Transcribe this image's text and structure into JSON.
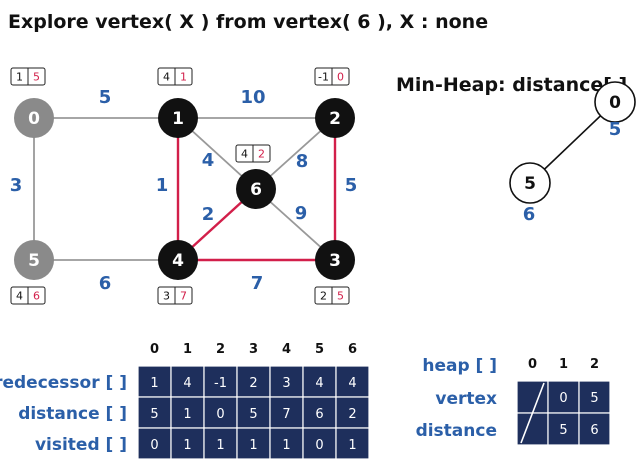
{
  "title": "Explore vertex( X ) from vertex( 6 ), X : none",
  "heap_title": "Min-Heap: distance[ ]",
  "colors": {
    "visited_node": "#111111",
    "unvisited_node": "#8a8a8a",
    "gray_edge": "#999999",
    "tree_edge": "#d21f4a",
    "weight_text": "#2b5fa8",
    "table_fill": "#1e2f5c",
    "distance_text": "#d21f4a"
  },
  "graph": {
    "nodes": [
      {
        "id": "0",
        "state": "unvisited",
        "pred": "1",
        "dist": "5"
      },
      {
        "id": "1",
        "state": "visited",
        "pred": "4",
        "dist": "1"
      },
      {
        "id": "2",
        "state": "visited",
        "pred": "-1",
        "dist": "0"
      },
      {
        "id": "3",
        "state": "visited",
        "pred": "2",
        "dist": "5"
      },
      {
        "id": "4",
        "state": "visited",
        "pred": "3",
        "dist": "7"
      },
      {
        "id": "5",
        "state": "unvisited",
        "pred": "4",
        "dist": "6"
      },
      {
        "id": "6",
        "state": "visited",
        "pred": "4",
        "dist": "2"
      }
    ],
    "edges": [
      {
        "from": "0",
        "to": "1",
        "weight": "5",
        "tree": false
      },
      {
        "from": "1",
        "to": "2",
        "weight": "10",
        "tree": false
      },
      {
        "from": "0",
        "to": "5",
        "weight": "3",
        "tree": false
      },
      {
        "from": "5",
        "to": "4",
        "weight": "6",
        "tree": false
      },
      {
        "from": "1",
        "to": "4",
        "weight": "1",
        "tree": true
      },
      {
        "from": "1",
        "to": "6",
        "weight": "4",
        "tree": false
      },
      {
        "from": "2",
        "to": "6",
        "weight": "8",
        "tree": false
      },
      {
        "from": "2",
        "to": "3",
        "weight": "5",
        "tree": true
      },
      {
        "from": "6",
        "to": "4",
        "weight": "2",
        "tree": true
      },
      {
        "from": "6",
        "to": "3",
        "weight": "9",
        "tree": false
      },
      {
        "from": "4",
        "to": "3",
        "weight": "7",
        "tree": true
      }
    ]
  },
  "heap_tree": {
    "nodes": [
      {
        "vertex": "0",
        "distance": "5"
      },
      {
        "vertex": "5",
        "distance": "6"
      }
    ],
    "edges": [
      {
        "parent": 0,
        "child": 1
      }
    ]
  },
  "table": {
    "columns": [
      "0",
      "1",
      "2",
      "3",
      "4",
      "5",
      "6"
    ],
    "rows": [
      {
        "label": "predecessor [ ]",
        "values": [
          "1",
          "4",
          "-1",
          "2",
          "3",
          "4",
          "4"
        ]
      },
      {
        "label": "distance [ ]",
        "values": [
          "5",
          "1",
          "0",
          "5",
          "7",
          "6",
          "2"
        ]
      },
      {
        "label": "visited [ ]",
        "values": [
          "0",
          "1",
          "1",
          "1",
          "1",
          "0",
          "1"
        ]
      }
    ]
  },
  "heap_table": {
    "title": "heap [ ]",
    "columns": [
      "0",
      "1",
      "2"
    ],
    "rows": [
      {
        "label": "vertex",
        "values": [
          "",
          "0",
          "5"
        ]
      },
      {
        "label": "distance",
        "values": [
          "",
          "5",
          "6"
        ]
      }
    ]
  }
}
